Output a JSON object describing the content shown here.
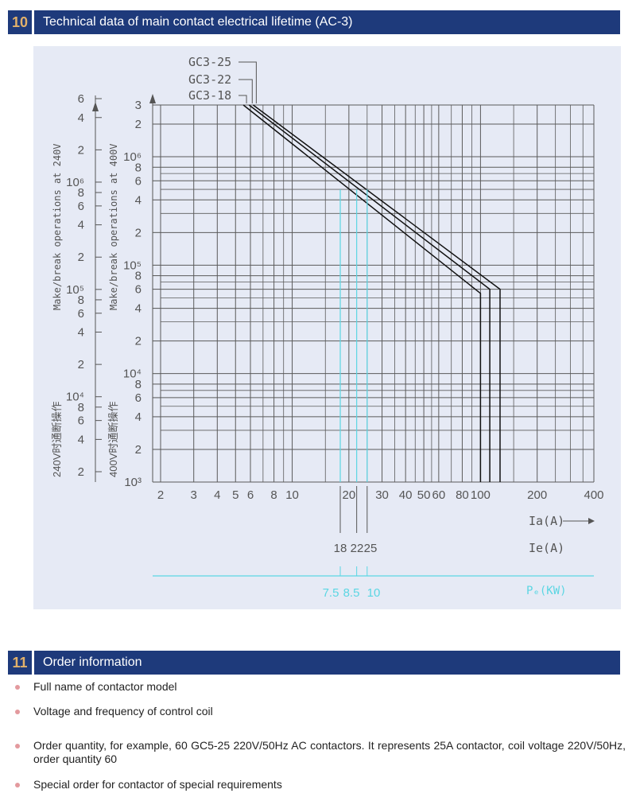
{
  "section10": {
    "number": "10",
    "title": "Technical data of main contact electrical lifetime (AC-3)"
  },
  "section11": {
    "number": "11",
    "title": "Order information"
  },
  "order_items": [
    "Full name of contactor model",
    "Voltage and frequency of control coil",
    "Order quantity, for example, 60 GC5-25 220V/50Hz AC contactors. It represents 25A contactor, coil voltage 220V/50Hz, order quantity 60",
    "Special order for contactor of special requirements"
  ],
  "chart_data": {
    "type": "line",
    "x_scale": "log",
    "y_scale": "log",
    "x_range": [
      2,
      400
    ],
    "y_range": [
      1000,
      3000000
    ],
    "x_ticks": [
      "2",
      "3",
      "4",
      "5",
      "6",
      "8",
      "10",
      "20",
      "30",
      "40",
      "50",
      "60",
      "80",
      "100",
      "200",
      "400"
    ],
    "x_tick_values": [
      2,
      3,
      4,
      5,
      6,
      8,
      10,
      20,
      30,
      40,
      50,
      60,
      80,
      100,
      200,
      400
    ],
    "xlabel": "Ia(A)",
    "ie_ticks": [
      "18",
      "22",
      "25"
    ],
    "ie_label": "Ie(A)",
    "power_ticks": [
      "7.5",
      "8.5",
      "10"
    ],
    "power_label": "Pₑ(KW)",
    "y400_ticks": [
      {
        "label": "10³",
        "value": 1000
      },
      {
        "label": "2",
        "value": 2000
      },
      {
        "label": "4",
        "value": 4000
      },
      {
        "label": "6",
        "value": 6000
      },
      {
        "label": "8",
        "value": 8000
      },
      {
        "label": "10⁴",
        "value": 10000
      },
      {
        "label": "2",
        "value": 20000
      },
      {
        "label": "4",
        "value": 40000
      },
      {
        "label": "6",
        "value": 60000
      },
      {
        "label": "8",
        "value": 80000
      },
      {
        "label": "10⁵",
        "value": 100000
      },
      {
        "label": "2",
        "value": 200000
      },
      {
        "label": "4",
        "value": 400000
      },
      {
        "label": "6",
        "value": 600000
      },
      {
        "label": "8",
        "value": 800000
      },
      {
        "label": "10⁶",
        "value": 1000000
      },
      {
        "label": "2",
        "value": 2000000
      },
      {
        "label": "3",
        "value": 3000000
      }
    ],
    "y400_label": "Make/break operations at 400V",
    "y400_cn_label": "400V时通断操作",
    "y240_ticks": [
      {
        "label": "2",
        "value": 2000
      },
      {
        "label": "4",
        "value": 4000
      },
      {
        "label": "6",
        "value": 6000
      },
      {
        "label": "8",
        "value": 8000
      },
      {
        "label": "10⁴",
        "value": 10000
      },
      {
        "label": "2",
        "value": 20000
      },
      {
        "label": "4",
        "value": 40000
      },
      {
        "label": "6",
        "value": 60000
      },
      {
        "label": "8",
        "value": 80000
      },
      {
        "label": "10⁵",
        "value": 100000
      },
      {
        "label": "2",
        "value": 200000
      },
      {
        "label": "4",
        "value": 400000
      },
      {
        "label": "6",
        "value": 600000
      },
      {
        "label": "8",
        "value": 800000
      },
      {
        "label": "10⁶",
        "value": 1000000
      },
      {
        "label": "2",
        "value": 2000000
      },
      {
        "label": "4",
        "value": 4000000
      },
      {
        "label": "6",
        "value": 6000000
      }
    ],
    "y240_label": "Make/break operations at 240V",
    "y240_cn_label": "240V时通断操作",
    "series": [
      {
        "name": "GC3-25",
        "points": [
          [
            6.2,
            3000000
          ],
          [
            127,
            60000
          ],
          [
            127,
            1000
          ]
        ]
      },
      {
        "name": "GC3-22",
        "points": [
          [
            5.9,
            3000000
          ],
          [
            112,
            60000
          ],
          [
            112,
            1000
          ]
        ]
      },
      {
        "name": "GC3-18",
        "points": [
          [
            5.5,
            3000000
          ],
          [
            100,
            55000
          ],
          [
            100,
            1000
          ]
        ]
      }
    ],
    "ie_values": [
      18,
      22,
      25
    ],
    "rated_marker_top": 500000,
    "colors": {
      "grid": "#5a5a5a",
      "curve": "#111111",
      "cyan": "#5bd6e3",
      "text": "#555555",
      "panel": "#e6eaf5"
    }
  }
}
